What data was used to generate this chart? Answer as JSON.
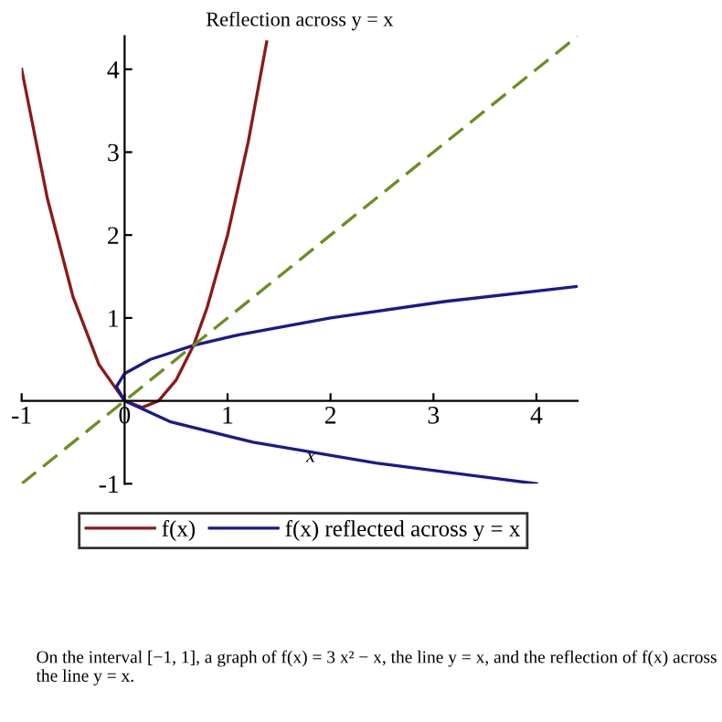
{
  "chart_data": {
    "type": "line",
    "title": "Reflection across y = x",
    "xlabel": "x",
    "xlim": [
      -1,
      4.4
    ],
    "ylim": [
      -1,
      4.4
    ],
    "xticks": [
      -1,
      0,
      1,
      2,
      3,
      4
    ],
    "yticks": [
      -1,
      1,
      2,
      3,
      4
    ],
    "grid": false,
    "legend": "bottom",
    "marker": "none",
    "series": [
      {
        "name": "f(x)",
        "color": "#8b1a1a",
        "line_style": "solid",
        "x": [
          -1,
          -0.75,
          -0.5,
          -0.25,
          0,
          0.17,
          0.33,
          0.5,
          0.67,
          0.8,
          1,
          1.2,
          1.38
        ],
        "values": [
          4,
          2.44,
          1.25,
          0.44,
          0,
          -0.08,
          0,
          0.25,
          0.67,
          1.12,
          2,
          3.12,
          4.33
        ]
      },
      {
        "name": "f(x) reflected across y = x",
        "color": "#1a1a8b",
        "line_style": "solid",
        "x": [
          4,
          2.44,
          1.25,
          0.44,
          0,
          -0.08,
          0,
          0.25,
          0.67,
          1.12,
          2,
          3.12,
          4.4
        ],
        "values": [
          -1,
          -0.75,
          -0.5,
          -0.25,
          0,
          0.17,
          0.33,
          0.5,
          0.67,
          0.8,
          1,
          1.2,
          1.38
        ]
      },
      {
        "color": "#6b8e23",
        "line_style": "dashed",
        "x": [
          -1,
          4.4
        ],
        "values": [
          -1,
          4.4
        ]
      }
    ],
    "annotations": [
      "On the interval [−1, 1], a graph of f(x) = 3 x² − x, the line y = x, and the reflection of f(x) across the line y = x."
    ]
  }
}
